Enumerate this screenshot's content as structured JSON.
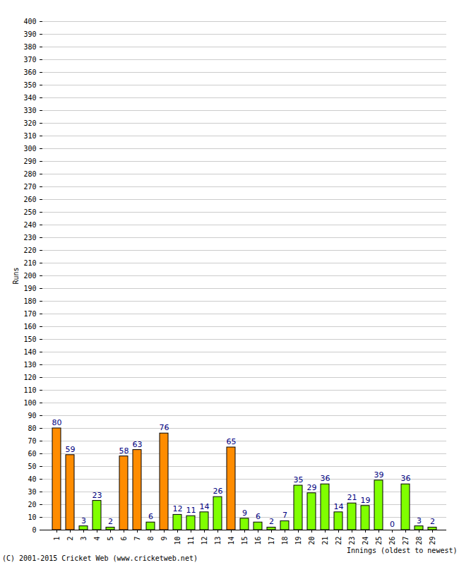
{
  "chart_data": {
    "type": "bar",
    "categories": [
      "1",
      "2",
      "3",
      "4",
      "5",
      "6",
      "7",
      "8",
      "9",
      "10",
      "11",
      "12",
      "13",
      "14",
      "15",
      "16",
      "17",
      "18",
      "19",
      "20",
      "21",
      "22",
      "23",
      "24",
      "25",
      "26",
      "27",
      "28",
      "29"
    ],
    "values": [
      80,
      59,
      3,
      23,
      2,
      58,
      63,
      6,
      76,
      12,
      11,
      14,
      26,
      65,
      9,
      6,
      2,
      7,
      35,
      29,
      36,
      14,
      21,
      19,
      39,
      0,
      36,
      3,
      2
    ],
    "colors": [
      "#ff8c00",
      "#ff8c00",
      "#80ff00",
      "#80ff00",
      "#80ff00",
      "#ff8c00",
      "#ff8c00",
      "#80ff00",
      "#ff8c00",
      "#80ff00",
      "#80ff00",
      "#80ff00",
      "#80ff00",
      "#ff8c00",
      "#80ff00",
      "#80ff00",
      "#80ff00",
      "#80ff00",
      "#80ff00",
      "#80ff00",
      "#80ff00",
      "#80ff00",
      "#80ff00",
      "#80ff00",
      "#80ff00",
      "#80ff00",
      "#80ff00",
      "#80ff00",
      "#80ff00"
    ],
    "x_label": "Innings (oldest to newest)",
    "y_label": "Runs",
    "annotation": "(C) 2001-2015 Cricket Web (www.cricketweb.net)",
    "ylim": [
      0,
      400
    ],
    "yticks": [
      0,
      10,
      20,
      30,
      40,
      50,
      60,
      70,
      80,
      90,
      100,
      110,
      120,
      130,
      140,
      150,
      160,
      170,
      180,
      190,
      200,
      210,
      220,
      230,
      240,
      250,
      260,
      270,
      280,
      290,
      300,
      310,
      320,
      330,
      340,
      350,
      360,
      370,
      380,
      390,
      400
    ],
    "grid": true,
    "data_labels": true
  }
}
